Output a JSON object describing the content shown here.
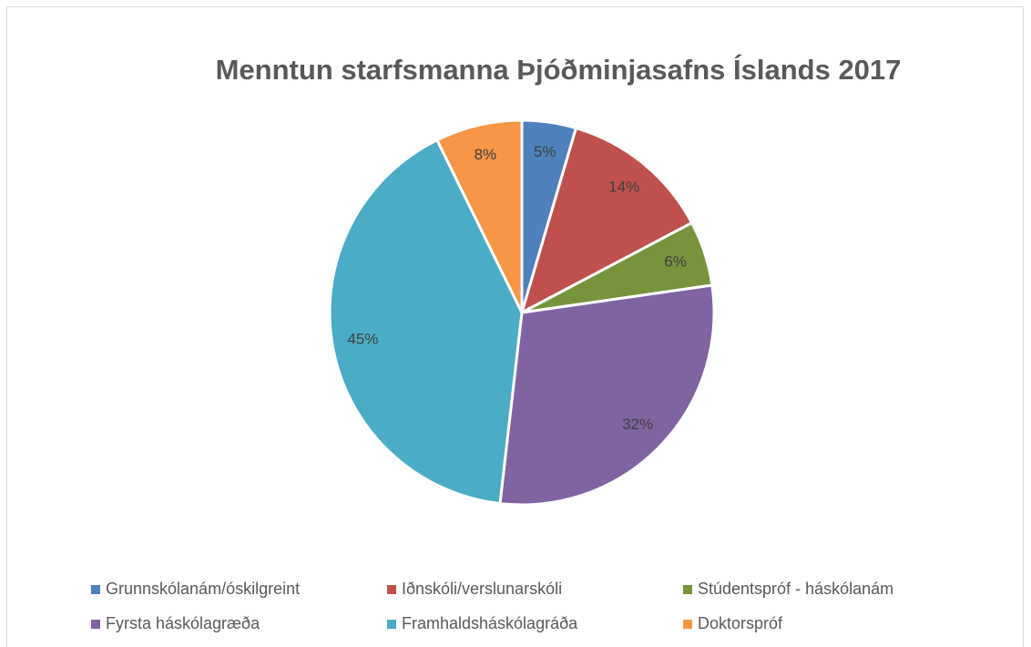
{
  "chart_data": {
    "type": "pie",
    "title": "Menntun starfsmanna Þjóðminjasafns Íslands 2017",
    "categories": [
      "Grunnskólanám/óskilgreint",
      "Iðnskóli/verslunarskóli",
      "Stúdentspróf - háskólanám",
      "Fyrsta háskólagræða",
      "Framhaldsháskólagráða",
      "Doktorspróf"
    ],
    "values": [
      5,
      14,
      6,
      32,
      45,
      8
    ],
    "value_labels": [
      "5%",
      "14%",
      "6%",
      "32%",
      "45%",
      "8%"
    ],
    "colors": [
      "#4f81bd",
      "#c0504d",
      "#77933c",
      "#8064a2",
      "#4bacc6",
      "#f79646"
    ],
    "legend": "bottom"
  }
}
